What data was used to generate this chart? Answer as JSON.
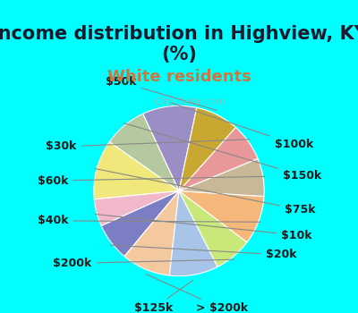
{
  "title": "Income distribution in Highview, KY\n(%)",
  "subtitle": "White residents",
  "background_top": "#00FFFF",
  "background_chart": "#e8f5e9",
  "labels": [
    "$100k",
    "$150k",
    "$75k",
    "$10k",
    "$20k",
    "> $200k",
    "$125k",
    "$200k",
    "$40k",
    "$60k",
    "$30k",
    "$50k"
  ],
  "sizes": [
    10,
    8,
    11,
    5,
    7,
    9,
    9,
    7,
    9,
    7,
    7,
    8
  ],
  "colors": [
    "#9b8ec4",
    "#b5c9a0",
    "#f0e87a",
    "#f0b8c8",
    "#7b7ec4",
    "#f5c9a0",
    "#a8c4e8",
    "#c8e87a",
    "#f5b87a",
    "#c8b898",
    "#e89898",
    "#c8a830"
  ],
  "label_fontsize": 9,
  "title_fontsize": 15,
  "subtitle_fontsize": 13,
  "watermark": "City-Data.com"
}
